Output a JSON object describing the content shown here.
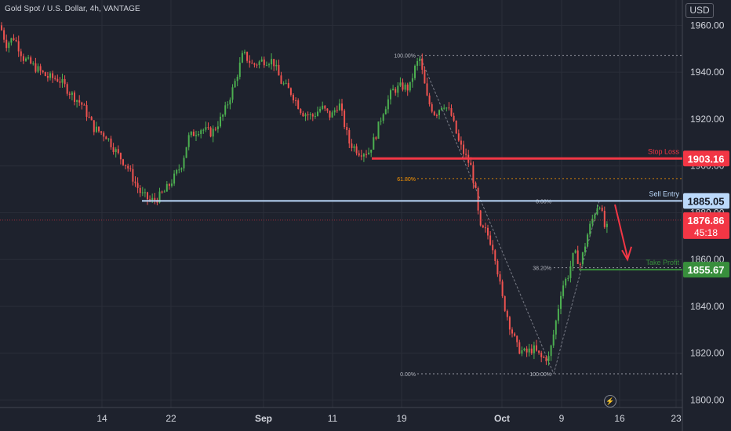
{
  "header": {
    "title": "Gold Spot / U.S. Dollar, 4h, VANTAGE",
    "currency": "USD"
  },
  "icons": {
    "bolt": "lightning-icon"
  },
  "colors": {
    "background": "#1e222d",
    "grid": "#2a2e39",
    "up": "#26a69a",
    "up_candle": "#4caf50",
    "down": "#ef5350",
    "stop_loss": "#f23645",
    "take_profit": "#388e3c",
    "sell_entry": "#bbd9fb",
    "fib": "#b2b5be",
    "fib_618": "#ff9800"
  },
  "chart_data": {
    "type": "candlestick",
    "symbol": "Gold Spot / U.S. Dollar",
    "timeframe": "4h",
    "ylim": [
      1795,
      1970
    ],
    "y_ticks": [
      1800,
      1820,
      1840,
      1860,
      1880,
      1900,
      1920,
      1940,
      1960
    ],
    "y_tick_labels": [
      "1800.00",
      "1820.00",
      "1840.00",
      "1860.00",
      "1880.00",
      "1900.00",
      "1920.00",
      "1940.00",
      "1960.00"
    ],
    "x_tick_labels": [
      "14",
      "22",
      "Sep",
      "11",
      "19",
      "Oct",
      "9",
      "16",
      "23"
    ],
    "grid": true,
    "price_path": [
      [
        0,
        1960
      ],
      [
        8,
        1952
      ],
      [
        18,
        1955
      ],
      [
        30,
        1946
      ],
      [
        45,
        1942
      ],
      [
        60,
        1938
      ],
      [
        75,
        1937
      ],
      [
        90,
        1931
      ],
      [
        105,
        1926
      ],
      [
        120,
        1916
      ],
      [
        135,
        1913
      ],
      [
        150,
        1905
      ],
      [
        162,
        1900
      ],
      [
        172,
        1893
      ],
      [
        180,
        1888
      ],
      [
        192,
        1885
      ],
      [
        200,
        1886
      ],
      [
        210,
        1889
      ],
      [
        222,
        1895
      ],
      [
        232,
        1901
      ],
      [
        240,
        1912
      ],
      [
        255,
        1916
      ],
      [
        270,
        1914
      ],
      [
        285,
        1922
      ],
      [
        298,
        1934
      ],
      [
        310,
        1948
      ],
      [
        322,
        1943
      ],
      [
        335,
        1945
      ],
      [
        348,
        1945
      ],
      [
        358,
        1936
      ],
      [
        372,
        1931
      ],
      [
        385,
        1923
      ],
      [
        398,
        1921
      ],
      [
        410,
        1925
      ],
      [
        422,
        1921
      ],
      [
        432,
        1927
      ],
      [
        445,
        1910
      ],
      [
        458,
        1906
      ],
      [
        470,
        1906
      ],
      [
        478,
        1912
      ],
      [
        488,
        1923
      ],
      [
        500,
        1932
      ],
      [
        512,
        1934
      ],
      [
        522,
        1933
      ],
      [
        528,
        1941
      ],
      [
        535,
        1946
      ],
      [
        545,
        1928
      ],
      [
        555,
        1922
      ],
      [
        565,
        1927
      ],
      [
        575,
        1922
      ],
      [
        585,
        1910
      ],
      [
        592,
        1905
      ],
      [
        600,
        1900
      ],
      [
        606,
        1890
      ],
      [
        612,
        1873
      ],
      [
        620,
        1872
      ],
      [
        630,
        1864
      ],
      [
        640,
        1844
      ],
      [
        650,
        1832
      ],
      [
        660,
        1822
      ],
      [
        670,
        1820
      ],
      [
        680,
        1822
      ],
      [
        690,
        1818
      ],
      [
        700,
        1818
      ],
      [
        708,
        1832
      ],
      [
        716,
        1848
      ],
      [
        724,
        1853
      ],
      [
        732,
        1863
      ],
      [
        740,
        1858
      ],
      [
        750,
        1872
      ],
      [
        758,
        1880
      ],
      [
        764,
        1885
      ],
      [
        772,
        1872
      ],
      [
        778,
        1876
      ]
    ],
    "levels": [
      {
        "name": "Stop Loss",
        "value": 1903.16,
        "label": "1903.16",
        "color": "#f23645"
      },
      {
        "name": "Sell Entry",
        "value": 1885.05,
        "label": "1885.05",
        "color": "#bbd9fb"
      },
      {
        "name": "Take Profit",
        "value": 1855.67,
        "label": "1855.67",
        "color": "#388e3c"
      }
    ],
    "current_price": {
      "value": 1876.86,
      "label": "1876.86",
      "countdown": "45:18",
      "color": "#f23645"
    },
    "fib_annotations": [
      {
        "label": "100.00%",
        "value": 1947.2
      },
      {
        "label": "61.80%",
        "value": 1894.6
      },
      {
        "label": "0.00%",
        "value": 1885.0
      },
      {
        "label": "38.20%",
        "value": 1856.5
      },
      {
        "label": "0.00%",
        "value": 1811.2
      },
      {
        "label": "100.00%",
        "value": 1811.2
      }
    ]
  }
}
